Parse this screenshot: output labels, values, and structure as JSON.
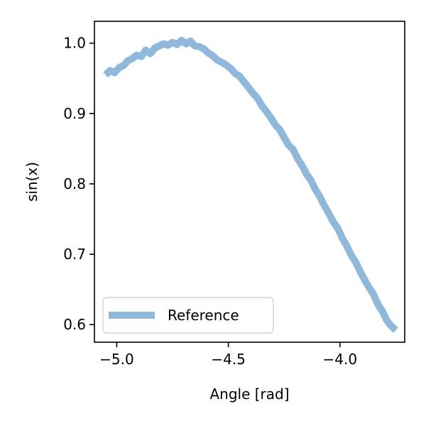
{
  "chart_data": {
    "type": "line",
    "title": "",
    "xlabel": "Angle [rad]",
    "ylabel": "sin(x)",
    "xlim": [
      -5.1,
      -3.71
    ],
    "ylim": [
      0.575,
      1.031
    ],
    "xticks": [
      -5.0,
      -4.5,
      -4.0
    ],
    "xtick_labels": [
      "−5.0",
      "−4.5",
      "−4.0"
    ],
    "yticks": [
      0.6,
      0.7,
      0.8,
      0.9,
      1.0
    ],
    "ytick_labels": [
      "0.6",
      "0.7",
      "0.8",
      "0.9",
      "1.0"
    ],
    "grid": false,
    "legend_position": "lower-left",
    "series": [
      {
        "name": "Reference",
        "color": "#8fb8da",
        "x": [
          -5.05,
          -5.03,
          -5.01,
          -4.99,
          -4.97,
          -4.95,
          -4.93,
          -4.91,
          -4.89,
          -4.87,
          -4.85,
          -4.83,
          -4.81,
          -4.79,
          -4.77,
          -4.75,
          -4.73,
          -4.71,
          -4.69,
          -4.67,
          -4.65,
          -4.63,
          -4.61,
          -4.59,
          -4.57,
          -4.55,
          -4.53,
          -4.51,
          -4.49,
          -4.47,
          -4.45,
          -4.43,
          -4.41,
          -4.39,
          -4.37,
          -4.35,
          -4.33,
          -4.31,
          -4.29,
          -4.27,
          -4.25,
          -4.23,
          -4.21,
          -4.19,
          -4.17,
          -4.15,
          -4.13,
          -4.11,
          -4.09,
          -4.07,
          -4.05,
          -4.03,
          -4.01,
          -3.99,
          -3.97,
          -3.95,
          -3.93,
          -3.91,
          -3.89,
          -3.87,
          -3.85,
          -3.83,
          -3.81,
          -3.79,
          -3.77,
          -3.75
        ],
        "y": [
          0.955,
          0.961,
          0.958,
          0.965,
          0.968,
          0.975,
          0.978,
          0.983,
          0.981,
          0.99,
          0.985,
          0.993,
          0.996,
          0.999,
          0.997,
          1.001,
          0.998,
          1.004,
          0.999,
          1.003,
          0.996,
          0.995,
          0.992,
          0.986,
          0.982,
          0.976,
          0.973,
          0.969,
          0.964,
          0.957,
          0.953,
          0.945,
          0.937,
          0.929,
          0.922,
          0.911,
          0.903,
          0.894,
          0.884,
          0.877,
          0.866,
          0.855,
          0.849,
          0.836,
          0.826,
          0.814,
          0.805,
          0.792,
          0.782,
          0.769,
          0.758,
          0.746,
          0.737,
          0.723,
          0.712,
          0.699,
          0.689,
          0.676,
          0.664,
          0.653,
          0.643,
          0.629,
          0.619,
          0.606,
          0.598,
          0.592
        ]
      }
    ]
  }
}
